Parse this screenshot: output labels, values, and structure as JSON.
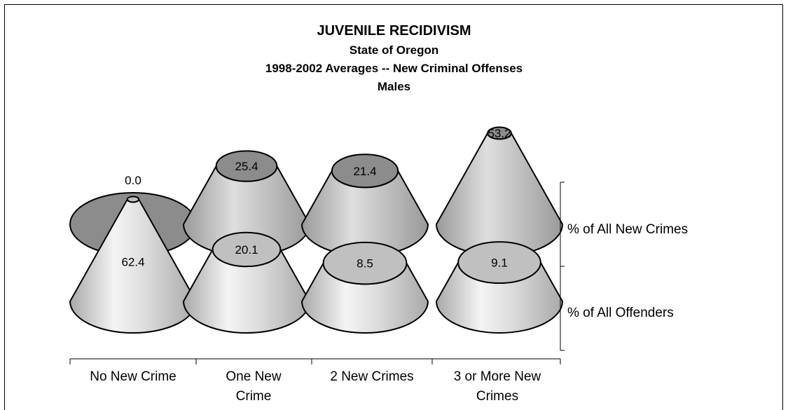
{
  "chart_data": {
    "type": "3d-cone",
    "title": "JUVENILE RECIDIVISM",
    "subtitles": [
      "State of Oregon",
      "1998-2002 Averages -- New Criminal Offenses",
      "Males"
    ],
    "categories": [
      "No New Crime",
      "One New Crime",
      "2 New Crimes",
      "3 or More New Crimes"
    ],
    "series": [
      {
        "name": "% of All New Crimes",
        "values": [
          0.0,
          25.4,
          21.4,
          53.2
        ]
      },
      {
        "name": "% of All Offenders",
        "values": [
          62.4,
          20.1,
          8.5,
          9.1
        ]
      }
    ],
    "value_labels": {
      "% of All New Crimes": [
        "0.0",
        "25.4",
        "21.4",
        "53.2"
      ],
      "% of All Offenders": [
        "62.4",
        "20.1",
        "8.5",
        "9.1"
      ]
    },
    "colors": {
      "new_crimes_top": "#8c8c8c",
      "offenders_top": "#c0c0c0",
      "cone_light": "#f4f4f4",
      "cone_dark": "#a9a9a9"
    }
  }
}
